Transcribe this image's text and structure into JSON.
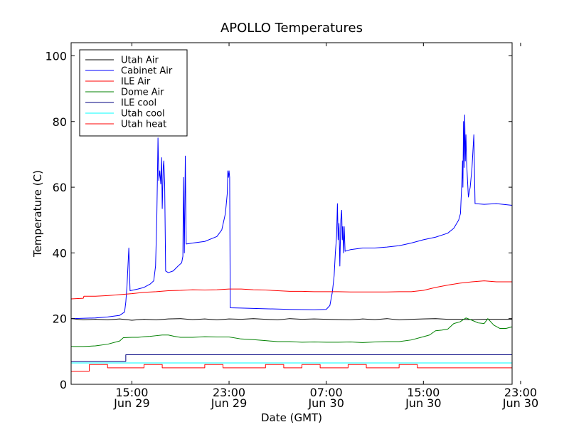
{
  "chart_data": {
    "type": "line",
    "title": "APOLLO Temperatures",
    "xlabel": "Date (GMT)",
    "ylabel": "Temperature (C)",
    "xlim": [
      10.0,
      46.3
    ],
    "ylim": [
      0,
      104
    ],
    "x_unit": "hours since Jun 29 00:00 GMT",
    "yticks": [
      0,
      20,
      40,
      60,
      80,
      100
    ],
    "xticks": [
      {
        "x": 15,
        "line1": "15:00",
        "line2": "Jun 29"
      },
      {
        "x": 23,
        "line1": "23:00",
        "line2": "Jun 29"
      },
      {
        "x": 31,
        "line1": "07:00",
        "line2": "Jun 30"
      },
      {
        "x": 39,
        "line1": "15:00",
        "line2": "Jun 30"
      },
      {
        "x": 47,
        "line1": "23:00",
        "line2": "Jun 30"
      }
    ],
    "legend": {
      "placement": "top-left"
    },
    "series": [
      {
        "name": "Utah Air",
        "color": "#000000",
        "points": [
          [
            10,
            20
          ],
          [
            11,
            19.6
          ],
          [
            12,
            19.8
          ],
          [
            13,
            19.6
          ],
          [
            14,
            19.9
          ],
          [
            15,
            19.5
          ],
          [
            16,
            19.8
          ],
          [
            17,
            19.6
          ],
          [
            18,
            19.9
          ],
          [
            19,
            20
          ],
          [
            20,
            19.7
          ],
          [
            21,
            19.9
          ],
          [
            22,
            19.6
          ],
          [
            23,
            19.9
          ],
          [
            24,
            19.8
          ],
          [
            25,
            20
          ],
          [
            26,
            19.8
          ],
          [
            27,
            19.6
          ],
          [
            28,
            20
          ],
          [
            29,
            19.8
          ],
          [
            30,
            19.9
          ],
          [
            31,
            19.8
          ],
          [
            32,
            19.7
          ],
          [
            33,
            19.6
          ],
          [
            34,
            19.9
          ],
          [
            35,
            19.7
          ],
          [
            36,
            20
          ],
          [
            37,
            19.6
          ],
          [
            38,
            19.8
          ],
          [
            39,
            19.9
          ],
          [
            40,
            20
          ],
          [
            41,
            19.8
          ],
          [
            42,
            19.8
          ],
          [
            43,
            19.7
          ],
          [
            44,
            19.8
          ],
          [
            45,
            19.8
          ],
          [
            46.3,
            19.8
          ]
        ]
      },
      {
        "name": "Cabinet Air",
        "color": "#0000ff",
        "points": [
          [
            10,
            20
          ],
          [
            12,
            20.2
          ],
          [
            13,
            20.5
          ],
          [
            14,
            21
          ],
          [
            14.4,
            22
          ],
          [
            14.5,
            25
          ],
          [
            14.6,
            30
          ],
          [
            14.75,
            41.5
          ],
          [
            14.85,
            28.5
          ],
          [
            15.5,
            29
          ],
          [
            16,
            29.5
          ],
          [
            16.5,
            30.5
          ],
          [
            16.8,
            31.5
          ],
          [
            16.95,
            36
          ],
          [
            17.05,
            50
          ],
          [
            17.1,
            62
          ],
          [
            17.15,
            75
          ],
          [
            17.22,
            62
          ],
          [
            17.3,
            65
          ],
          [
            17.38,
            61
          ],
          [
            17.45,
            69
          ],
          [
            17.5,
            53.5
          ],
          [
            17.58,
            66
          ],
          [
            17.63,
            68
          ],
          [
            17.7,
            61
          ],
          [
            17.78,
            34.5
          ],
          [
            18,
            34
          ],
          [
            18.4,
            34.5
          ],
          [
            18.8,
            36
          ],
          [
            19.1,
            37
          ],
          [
            19.2,
            39
          ],
          [
            19.25,
            63
          ],
          [
            19.32,
            40
          ],
          [
            19.4,
            69.5
          ],
          [
            19.47,
            42.7
          ],
          [
            20,
            43
          ],
          [
            21,
            43.5
          ],
          [
            22,
            45
          ],
          [
            22.4,
            47
          ],
          [
            22.7,
            52
          ],
          [
            22.85,
            58
          ],
          [
            22.9,
            65
          ],
          [
            22.95,
            63
          ],
          [
            23,
            65
          ],
          [
            23.05,
            63
          ],
          [
            23.1,
            23.3
          ],
          [
            24,
            23.2
          ],
          [
            26,
            23
          ],
          [
            28,
            22.8
          ],
          [
            30,
            22.7
          ],
          [
            31,
            22.8
          ],
          [
            31.3,
            24
          ],
          [
            31.5,
            28
          ],
          [
            31.65,
            33
          ],
          [
            31.75,
            40
          ],
          [
            31.85,
            45
          ],
          [
            31.92,
            55
          ],
          [
            31.98,
            44
          ],
          [
            32.05,
            49
          ],
          [
            32.12,
            36
          ],
          [
            32.2,
            50
          ],
          [
            32.27,
            53
          ],
          [
            32.32,
            44
          ],
          [
            32.36,
            48
          ],
          [
            32.42,
            40
          ],
          [
            32.48,
            48
          ],
          [
            32.55,
            40.5
          ],
          [
            33,
            41
          ],
          [
            34,
            41.5
          ],
          [
            35,
            41.5
          ],
          [
            36,
            41.8
          ],
          [
            37,
            42.2
          ],
          [
            38,
            43
          ],
          [
            39,
            44
          ],
          [
            40,
            44.8
          ],
          [
            41,
            46
          ],
          [
            41.5,
            47.5
          ],
          [
            41.9,
            50
          ],
          [
            42.05,
            52
          ],
          [
            42.12,
            58
          ],
          [
            42.18,
            63
          ],
          [
            42.22,
            68
          ],
          [
            42.25,
            60
          ],
          [
            42.3,
            80
          ],
          [
            42.35,
            66
          ],
          [
            42.4,
            82
          ],
          [
            42.45,
            68
          ],
          [
            42.5,
            76
          ],
          [
            42.55,
            68
          ],
          [
            42.7,
            57
          ],
          [
            42.85,
            60
          ],
          [
            43,
            66
          ],
          [
            43.15,
            76
          ],
          [
            43.25,
            55
          ],
          [
            44,
            54.8
          ],
          [
            45,
            55
          ],
          [
            46.3,
            54.5
          ]
        ]
      },
      {
        "name": "ILE Air",
        "color": "#ff0000",
        "points": [
          [
            10,
            26
          ],
          [
            11,
            26.2
          ],
          [
            11.05,
            26.8
          ],
          [
            12,
            26.8
          ],
          [
            13,
            27
          ],
          [
            14,
            27.3
          ],
          [
            15,
            27.6
          ],
          [
            16,
            28
          ],
          [
            17,
            28.2
          ],
          [
            18,
            28.5
          ],
          [
            19,
            28.6
          ],
          [
            20,
            28.8
          ],
          [
            21,
            28.7
          ],
          [
            22,
            28.8
          ],
          [
            23,
            29
          ],
          [
            24,
            29
          ],
          [
            25,
            28.8
          ],
          [
            26,
            28.7
          ],
          [
            27,
            28.5
          ],
          [
            28,
            28.3
          ],
          [
            29,
            28.3
          ],
          [
            30,
            28.2
          ],
          [
            31,
            28.2
          ],
          [
            32,
            28.2
          ],
          [
            33,
            28.1
          ],
          [
            34,
            28.1
          ],
          [
            35,
            28.1
          ],
          [
            36,
            28.1
          ],
          [
            37,
            28.2
          ],
          [
            38,
            28.2
          ],
          [
            39,
            28.6
          ],
          [
            40,
            29.5
          ],
          [
            41,
            30.2
          ],
          [
            42,
            30.8
          ],
          [
            43,
            31.2
          ],
          [
            44,
            31.5
          ],
          [
            45,
            31.2
          ],
          [
            46.3,
            31.2
          ]
        ]
      },
      {
        "name": "Dome Air",
        "color": "#008000",
        "points": [
          [
            10,
            11.5
          ],
          [
            11,
            11.5
          ],
          [
            12,
            11.7
          ],
          [
            13,
            12.2
          ],
          [
            14,
            13.2
          ],
          [
            14.3,
            14.2
          ],
          [
            15,
            14.3
          ],
          [
            15.5,
            14.3
          ],
          [
            16,
            14.5
          ],
          [
            16.5,
            14.6
          ],
          [
            17,
            14.8
          ],
          [
            17.5,
            15
          ],
          [
            18,
            15
          ],
          [
            18.5,
            14.6
          ],
          [
            19,
            14.3
          ],
          [
            20,
            14.3
          ],
          [
            21,
            14.5
          ],
          [
            22,
            14.4
          ],
          [
            23,
            14.4
          ],
          [
            24,
            13.8
          ],
          [
            25,
            13.6
          ],
          [
            26,
            13.3
          ],
          [
            27,
            13
          ],
          [
            28,
            13
          ],
          [
            29,
            12.8
          ],
          [
            30,
            12.9
          ],
          [
            31,
            12.8
          ],
          [
            32,
            12.8
          ],
          [
            33,
            12.9
          ],
          [
            34,
            12.7
          ],
          [
            35,
            12.9
          ],
          [
            36,
            13
          ],
          [
            37,
            13
          ],
          [
            38,
            13.5
          ],
          [
            39,
            14.5
          ],
          [
            39.5,
            15
          ],
          [
            40,
            16.3
          ],
          [
            40.5,
            16.5
          ],
          [
            41,
            16.8
          ],
          [
            41.5,
            18.5
          ],
          [
            42,
            19
          ],
          [
            42.5,
            20.2
          ],
          [
            43,
            19.5
          ],
          [
            43.5,
            18.7
          ],
          [
            44,
            18.5
          ],
          [
            44.3,
            20
          ],
          [
            44.8,
            18
          ],
          [
            45.3,
            17
          ],
          [
            45.8,
            17
          ],
          [
            46.3,
            17.5
          ]
        ]
      },
      {
        "name": "ILE cool",
        "color": "#000080",
        "points": [
          [
            10,
            7
          ],
          [
            14.5,
            7
          ],
          [
            14.5,
            9
          ],
          [
            46.3,
            9
          ]
        ]
      },
      {
        "name": "Utah cool",
        "color": "#00ffff",
        "points": [
          [
            10,
            6.5
          ],
          [
            46.3,
            6.5
          ]
        ]
      },
      {
        "name": "Utah heat",
        "color": "#ff0000",
        "points": [
          [
            10,
            4
          ],
          [
            11.5,
            4
          ],
          [
            11.5,
            6
          ],
          [
            13,
            6
          ],
          [
            13,
            5
          ],
          [
            16,
            5
          ],
          [
            16,
            6
          ],
          [
            17.5,
            6
          ],
          [
            17.5,
            5
          ],
          [
            21,
            5
          ],
          [
            21,
            6
          ],
          [
            22.5,
            6
          ],
          [
            22.5,
            5
          ],
          [
            26,
            5
          ],
          [
            26,
            6
          ],
          [
            27.5,
            6
          ],
          [
            27.5,
            5
          ],
          [
            29,
            5
          ],
          [
            29,
            6
          ],
          [
            30.5,
            6
          ],
          [
            30.5,
            5
          ],
          [
            32.8,
            5
          ],
          [
            32.8,
            6
          ],
          [
            34.3,
            6
          ],
          [
            34.3,
            5
          ],
          [
            37,
            5
          ],
          [
            37,
            6
          ],
          [
            38.5,
            6
          ],
          [
            38.5,
            5
          ],
          [
            46.3,
            5
          ]
        ]
      }
    ]
  }
}
